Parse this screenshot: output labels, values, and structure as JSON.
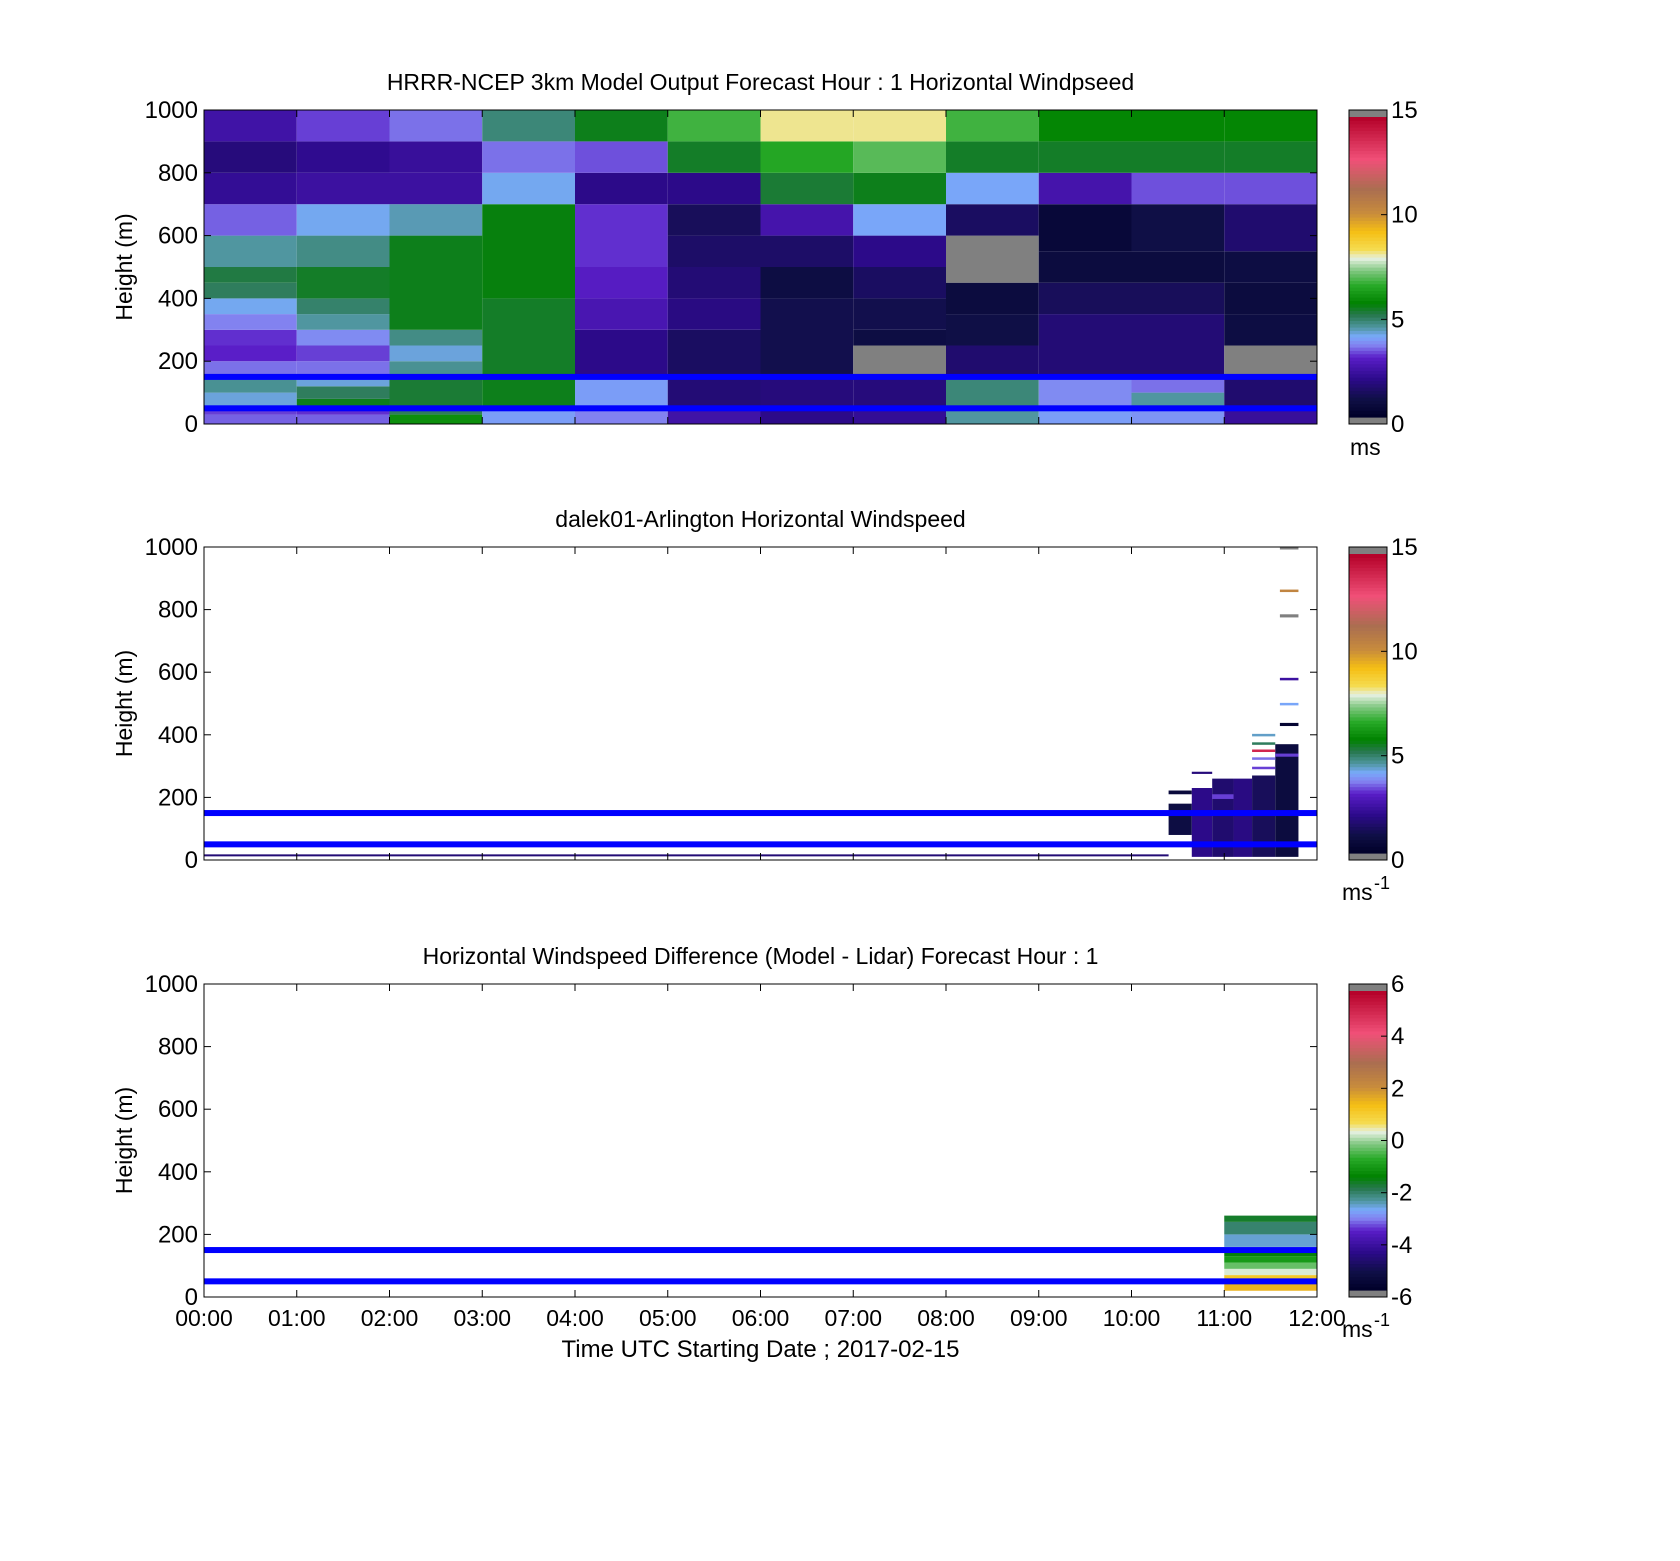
{
  "chart_data": [
    {
      "type": "heatmap",
      "title": "HRRR-NCEP 3km Model Output   Forecast Hour : 1 Horizontal Windpseed",
      "ylabel": "Height (m)",
      "ylim": [
        0,
        1000
      ],
      "yticks": [
        "0",
        "200",
        "400",
        "600",
        "800",
        "1000"
      ],
      "xlim": [
        0,
        12
      ],
      "x_grid_hours": [
        0,
        1,
        2,
        3,
        4,
        5,
        6,
        7,
        8,
        9,
        10,
        11,
        12
      ],
      "colorbar": {
        "min": 0,
        "max": 15,
        "ticks": [
          "0",
          "5",
          "10",
          "15"
        ],
        "unit": "ms"
      },
      "reference_lines_m": [
        50,
        150
      ],
      "line_color": "#0000ff",
      "columns": [
        {
          "t0": 0,
          "t1": 1,
          "cells": [
            [
              0,
              30,
              3.4
            ],
            [
              30,
              50,
              3.2
            ],
            [
              50,
              100,
              4.2
            ],
            [
              100,
              150,
              4.6
            ],
            [
              150,
              200,
              3.5
            ],
            [
              200,
              250,
              3.0
            ],
            [
              250,
              300,
              3.1
            ],
            [
              300,
              350,
              3.6
            ],
            [
              350,
              400,
              4.1
            ],
            [
              400,
              450,
              5.0
            ],
            [
              450,
              500,
              5.2
            ],
            [
              500,
              600,
              4.5
            ],
            [
              600,
              700,
              3.4
            ],
            [
              700,
              800,
              2.1
            ],
            [
              800,
              900,
              1.7
            ],
            [
              900,
              1000,
              2.4
            ]
          ]
        },
        {
          "t0": 1,
          "t1": 2,
          "cells": [
            [
              0,
              30,
              3.4
            ],
            [
              30,
              50,
              3.1
            ],
            [
              50,
              80,
              5.5
            ],
            [
              80,
              120,
              5.0
            ],
            [
              120,
              150,
              4.2
            ],
            [
              150,
              200,
              3.5
            ],
            [
              200,
              250,
              3.2
            ],
            [
              250,
              300,
              3.7
            ],
            [
              300,
              350,
              4.5
            ],
            [
              350,
              400,
              4.9
            ],
            [
              400,
              500,
              5.4
            ],
            [
              500,
              600,
              4.7
            ],
            [
              600,
              700,
              4.1
            ],
            [
              700,
              800,
              2.3
            ],
            [
              800,
              900,
              2.0
            ],
            [
              900,
              1000,
              3.2
            ]
          ]
        },
        {
          "t0": 2,
          "t1": 3,
          "cells": [
            [
              0,
              30,
              6.0
            ],
            [
              30,
              50,
              5.0
            ],
            [
              50,
              150,
              5.3
            ],
            [
              150,
              200,
              4.6
            ],
            [
              200,
              250,
              4.2
            ],
            [
              250,
              300,
              4.7
            ],
            [
              300,
              600,
              5.5
            ],
            [
              600,
              700,
              4.4
            ],
            [
              700,
              800,
              2.3
            ],
            [
              800,
              900,
              2.2
            ],
            [
              900,
              1000,
              3.5
            ]
          ]
        },
        {
          "t0": 3,
          "t1": 4,
          "cells": [
            [
              0,
              50,
              3.9
            ],
            [
              50,
              150,
              5.5
            ],
            [
              150,
              400,
              5.4
            ],
            [
              400,
              500,
              5.6
            ],
            [
              500,
              700,
              5.6
            ],
            [
              700,
              800,
              4.1
            ],
            [
              800,
              900,
              3.5
            ],
            [
              900,
              1000,
              4.8
            ]
          ]
        },
        {
          "t0": 4,
          "t1": 5,
          "cells": [
            [
              0,
              50,
              3.6
            ],
            [
              50,
              150,
              3.9
            ],
            [
              150,
              300,
              1.9
            ],
            [
              300,
              400,
              2.6
            ],
            [
              400,
              500,
              2.9
            ],
            [
              500,
              700,
              3.1
            ],
            [
              700,
              800,
              1.9
            ],
            [
              800,
              900,
              3.3
            ],
            [
              900,
              1000,
              5.5
            ]
          ]
        },
        {
          "t0": 5,
          "t1": 6,
          "cells": [
            [
              0,
              50,
              2.4
            ],
            [
              50,
              150,
              1.6
            ],
            [
              150,
              300,
              1.3
            ],
            [
              300,
              400,
              1.8
            ],
            [
              400,
              500,
              1.6
            ],
            [
              500,
              600,
              1.4
            ],
            [
              600,
              700,
              1.2
            ],
            [
              700,
              800,
              1.9
            ],
            [
              800,
              900,
              5.4
            ],
            [
              900,
              1000,
              6.8
            ]
          ]
        },
        {
          "t0": 6,
          "t1": 7,
          "cells": [
            [
              0,
              50,
              1.9
            ],
            [
              50,
              150,
              1.7
            ],
            [
              150,
              400,
              1.0
            ],
            [
              400,
              500,
              0.8
            ],
            [
              500,
              600,
              1.4
            ],
            [
              600,
              700,
              2.5
            ],
            [
              700,
              800,
              5.3
            ],
            [
              800,
              900,
              6.5
            ],
            [
              900,
              1000,
              8.2
            ]
          ]
        },
        {
          "t0": 7,
          "t1": 8,
          "cells": [
            [
              0,
              50,
              2.1
            ],
            [
              50,
              150,
              1.7
            ],
            [
              150,
              250,
              -1
            ],
            [
              250,
              300,
              0.8
            ],
            [
              300,
              400,
              1.0
            ],
            [
              400,
              500,
              1.3
            ],
            [
              500,
              600,
              1.9
            ],
            [
              600,
              700,
              4.0
            ],
            [
              700,
              800,
              5.5
            ],
            [
              800,
              900,
              7.0
            ],
            [
              900,
              1000,
              8.2
            ]
          ]
        },
        {
          "t0": 8,
          "t1": 9,
          "cells": [
            [
              0,
              50,
              4.5
            ],
            [
              50,
              150,
              4.8
            ],
            [
              150,
              250,
              1.5
            ],
            [
              250,
              350,
              0.9
            ],
            [
              350,
              450,
              0.7
            ],
            [
              450,
              600,
              -1
            ],
            [
              600,
              700,
              1.3
            ],
            [
              700,
              800,
              4.0
            ],
            [
              800,
              900,
              5.4
            ],
            [
              900,
              1000,
              6.8
            ]
          ]
        },
        {
          "t0": 9,
          "t1": 10,
          "cells": [
            [
              0,
              50,
              3.9
            ],
            [
              50,
              150,
              3.7
            ],
            [
              150,
              350,
              1.6
            ],
            [
              350,
              450,
              1.2
            ],
            [
              450,
              550,
              0.7
            ],
            [
              550,
              700,
              0.5
            ],
            [
              700,
              800,
              2.5
            ],
            [
              800,
              900,
              5.4
            ],
            [
              900,
              1000,
              5.8
            ]
          ]
        },
        {
          "t0": 10,
          "t1": 11,
          "cells": [
            [
              0,
              50,
              3.8
            ],
            [
              50,
              100,
              4.5
            ],
            [
              100,
              150,
              3.5
            ],
            [
              150,
              350,
              1.6
            ],
            [
              350,
              450,
              1.2
            ],
            [
              450,
              550,
              0.7
            ],
            [
              550,
              700,
              0.9
            ],
            [
              700,
              800,
              3.3
            ],
            [
              800,
              900,
              5.4
            ],
            [
              900,
              1000,
              5.8
            ]
          ]
        },
        {
          "t0": 11,
          "t1": 12,
          "cells": [
            [
              0,
              50,
              2.2
            ],
            [
              50,
              150,
              1.5
            ],
            [
              150,
              250,
              -1
            ],
            [
              250,
              350,
              0.8
            ],
            [
              350,
              450,
              0.7
            ],
            [
              450,
              550,
              0.8
            ],
            [
              550,
              700,
              1.5
            ],
            [
              700,
              800,
              3.3
            ],
            [
              800,
              900,
              5.4
            ],
            [
              900,
              1000,
              5.8
            ]
          ]
        }
      ]
    },
    {
      "type": "heatmap",
      "title": "dalek01-Arlington  Horizontal Windspeed",
      "ylabel": "Height (m)",
      "ylim": [
        0,
        1000
      ],
      "yticks": [
        "0",
        "200",
        "400",
        "600",
        "800",
        "1000"
      ],
      "xlim": [
        0,
        12
      ],
      "colorbar": {
        "min": 0,
        "max": 15,
        "ticks": [
          "0",
          "5",
          "10",
          "15"
        ],
        "unit": "ms",
        "unit_sup": "-1"
      },
      "reference_lines_m": [
        50,
        150
      ],
      "line_color": "#0000ff",
      "segments": [
        {
          "t0": 0.0,
          "t1": 10.4,
          "h0": 12,
          "h1": 18,
          "v": 1.6
        },
        {
          "t0": 10.4,
          "t1": 10.65,
          "h0": 80,
          "h1": 180,
          "v": 0.8
        },
        {
          "t0": 10.4,
          "t1": 10.65,
          "h0": 210,
          "h1": 222,
          "v": 0.6
        },
        {
          "t0": 10.65,
          "t1": 10.87,
          "h0": 10,
          "h1": 230,
          "v": 1.9
        },
        {
          "t0": 10.65,
          "t1": 10.87,
          "h0": 275,
          "h1": 282,
          "v": 1.7
        },
        {
          "t0": 10.87,
          "t1": 11.1,
          "h0": 10,
          "h1": 260,
          "v": 1.5
        },
        {
          "t0": 10.87,
          "t1": 11.1,
          "h0": 195,
          "h1": 210,
          "v": 3.2
        },
        {
          "t0": 11.1,
          "t1": 11.3,
          "h0": 10,
          "h1": 260,
          "v": 1.8
        },
        {
          "t0": 11.3,
          "t1": 11.55,
          "h0": 10,
          "h1": 270,
          "v": 1.2
        },
        {
          "t0": 11.55,
          "t1": 11.8,
          "h0": 10,
          "h1": 370,
          "v": 0.7
        },
        {
          "t0": 11.55,
          "t1": 11.8,
          "h0": 330,
          "h1": 340,
          "v": 3.2
        },
        {
          "t0": 11.3,
          "t1": 11.55,
          "h0": 290,
          "h1": 298,
          "v": 3.2
        },
        {
          "t0": 11.3,
          "t1": 11.55,
          "h0": 320,
          "h1": 328,
          "v": 3.5
        },
        {
          "t0": 11.3,
          "t1": 11.55,
          "h0": 345,
          "h1": 353,
          "v": 14
        },
        {
          "t0": 11.3,
          "t1": 11.55,
          "h0": 368,
          "h1": 376,
          "v": 5.0
        },
        {
          "t0": 11.3,
          "t1": 11.55,
          "h0": 395,
          "h1": 403,
          "v": 4.3
        },
        {
          "t0": 11.6,
          "t1": 11.8,
          "h0": 428,
          "h1": 438,
          "v": 0.3
        },
        {
          "t0": 11.6,
          "t1": 11.8,
          "h0": 494,
          "h1": 502,
          "v": 4.0
        },
        {
          "t0": 11.6,
          "t1": 11.8,
          "h0": 574,
          "h1": 582,
          "v": 2.3
        },
        {
          "t0": 11.6,
          "t1": 11.8,
          "h0": 775,
          "h1": 785,
          "v": -1
        },
        {
          "t0": 11.6,
          "t1": 11.8,
          "h0": 856,
          "h1": 864,
          "v": 10.5
        },
        {
          "t0": 11.6,
          "t1": 11.8,
          "h0": 992,
          "h1": 1000,
          "v": -1
        }
      ]
    },
    {
      "type": "heatmap",
      "title": "Horizontal Windspeed Difference (Model - Lidar) Forecast Hour : 1",
      "ylabel": "Height (m)",
      "xlabel": "Time UTC  Starting Date ; 2017-02-15",
      "ylim": [
        0,
        1000
      ],
      "yticks": [
        "0",
        "200",
        "400",
        "600",
        "800",
        "1000"
      ],
      "xlim": [
        0,
        12
      ],
      "xticks": [
        "00:00",
        "01:00",
        "02:00",
        "03:00",
        "04:00",
        "05:00",
        "06:00",
        "07:00",
        "08:00",
        "09:00",
        "10:00",
        "11:00",
        "12:00"
      ],
      "colorbar": {
        "min": -6,
        "max": 6,
        "ticks": [
          "-6",
          "-4",
          "-2",
          "0",
          "2",
          "4",
          "6"
        ],
        "unit": "ms",
        "unit_sup": "-1"
      },
      "reference_lines_m": [
        50,
        150
      ],
      "line_color": "#0000ff",
      "segments": [
        {
          "t0": 11.0,
          "t1": 12.0,
          "h0": 20,
          "h1": 50,
          "v": 1.6
        },
        {
          "t0": 11.0,
          "t1": 12.0,
          "h0": 50,
          "h1": 70,
          "v": 1.2
        },
        {
          "t0": 11.0,
          "t1": 12.0,
          "h0": 70,
          "h1": 90,
          "v": 0.3
        },
        {
          "t0": 11.0,
          "t1": 12.0,
          "h0": 90,
          "h1": 110,
          "v": -0.3
        },
        {
          "t0": 11.0,
          "t1": 12.0,
          "h0": 110,
          "h1": 130,
          "v": -1.0
        },
        {
          "t0": 11.0,
          "t1": 12.0,
          "h0": 130,
          "h1": 150,
          "v": -1.5
        },
        {
          "t0": 11.0,
          "t1": 12.0,
          "h0": 160,
          "h1": 200,
          "v": -2.6
        },
        {
          "t0": 11.0,
          "t1": 12.0,
          "h0": 200,
          "h1": 240,
          "v": -2.1
        },
        {
          "t0": 11.0,
          "t1": 12.0,
          "h0": 240,
          "h1": 260,
          "v": -1.7
        }
      ]
    }
  ]
}
